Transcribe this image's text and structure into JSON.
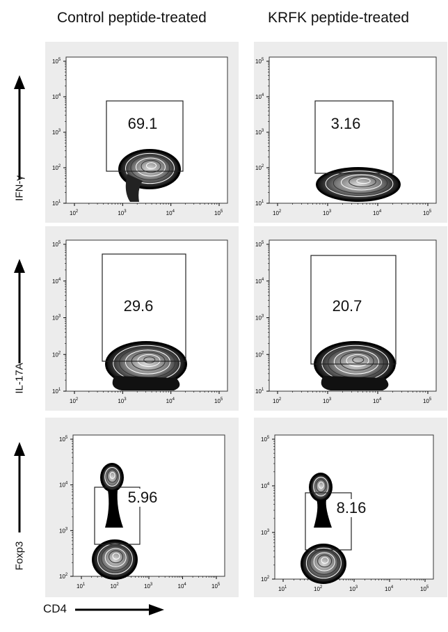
{
  "chart_data": {
    "type": "flow_cytometry_contour_grid",
    "column_titles": [
      "Control peptide-treated",
      "KRFK peptide-treated"
    ],
    "row_labels": [
      "IFN-γ",
      "IL-17A",
      "Foxp3"
    ],
    "x_axis_label": "CD4",
    "tick_labels": [
      "10^1",
      "10^2",
      "10^3",
      "10^4",
      "10^5"
    ],
    "panels": [
      {
        "row": "IFN-γ",
        "column": "Control peptide-treated",
        "gate_percent": "69.1"
      },
      {
        "row": "IFN-γ",
        "column": "KRFK peptide-treated",
        "gate_percent": "3.16"
      },
      {
        "row": "IL-17A",
        "column": "Control peptide-treated",
        "gate_percent": "29.6"
      },
      {
        "row": "IL-17A",
        "column": "KRFK peptide-treated",
        "gate_percent": "20.7"
      },
      {
        "row": "Foxp3",
        "column": "Control peptide-treated",
        "gate_percent": "5.96"
      },
      {
        "row": "Foxp3",
        "column": "KRFK peptide-treated",
        "gate_percent": "8.16"
      }
    ]
  }
}
